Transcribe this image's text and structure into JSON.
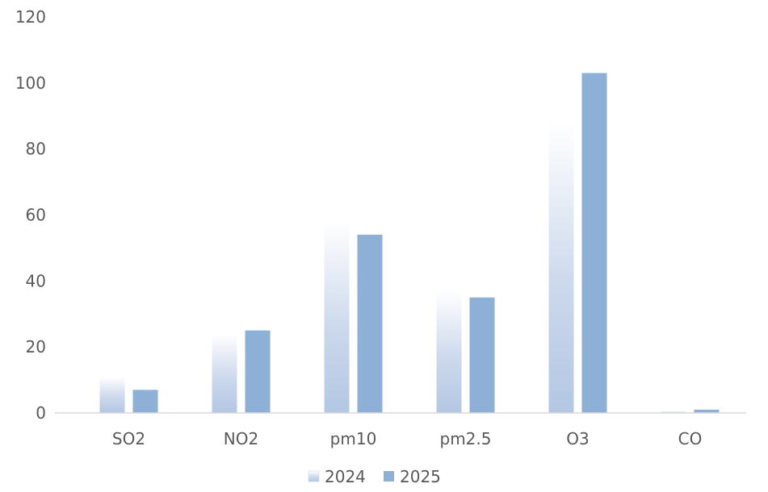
{
  "chart_data": {
    "type": "bar",
    "title": "",
    "xlabel": "",
    "ylabel": "",
    "categories": [
      "SO2",
      "NO2",
      "pm10",
      "pm2.5",
      "O3",
      "CO"
    ],
    "series": [
      {
        "name": "2024",
        "values": [
          11,
          24,
          58,
          37,
          88,
          0.5
        ],
        "color": "#b8cbe4",
        "style": "gradient"
      },
      {
        "name": "2025",
        "values": [
          7,
          25,
          54,
          35,
          103,
          1
        ],
        "color": "#8eafd6",
        "style": "solid"
      }
    ],
    "ylim": [
      0,
      120
    ],
    "yticks": [
      0,
      20,
      40,
      60,
      80,
      100,
      120
    ],
    "grid": false,
    "legend": "bottom-center",
    "axis_color": "#d9d9d9",
    "text_color": "#595959"
  }
}
